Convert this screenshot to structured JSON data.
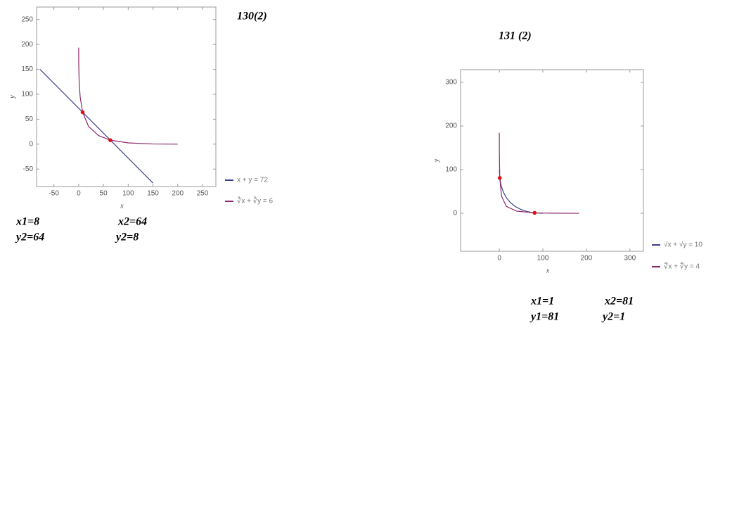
{
  "chart_data": [
    {
      "type": "line",
      "title": "130(2)",
      "xlabel": "x",
      "ylabel": "y",
      "xlim": [
        -85,
        277
      ],
      "ylim": [
        -85,
        275
      ],
      "xticks": [
        -50,
        0,
        50,
        100,
        150,
        200,
        250
      ],
      "yticks": [
        -50,
        0,
        50,
        100,
        150,
        200,
        250
      ],
      "series": [
        {
          "name": "x + y = 72",
          "color": "#3b3f8c",
          "x": [
            -78,
            150
          ],
          "values": [
            150,
            -78
          ]
        },
        {
          "name": "∛x + ∛y = 6",
          "color": "#8b2a6a",
          "x": [
            0.01,
            0.2,
            1,
            3,
            8,
            20,
            40,
            64,
            100,
            150,
            200
          ],
          "values": [
            193.6,
            158.8,
            125,
            94.7,
            64,
            35.5,
            17.2,
            8,
            2.5,
            0.3,
            0
          ]
        }
      ],
      "points": {
        "color": "#e01010",
        "x": [
          8,
          64
        ],
        "values": [
          64,
          8
        ]
      },
      "annotations": [
        "x1=8",
        "x2=64",
        "y2=64",
        "y2=8"
      ]
    },
    {
      "type": "line",
      "title": "131 (2)",
      "xlabel": "x",
      "ylabel": "y",
      "xlim": [
        -89,
        331
      ],
      "ylim": [
        -87,
        329
      ],
      "xticks": [
        0,
        100,
        200,
        300
      ],
      "yticks": [
        0,
        100,
        200,
        300
      ],
      "series": [
        {
          "name": "√x + √y = 10",
          "color": "#3b3f8c",
          "x": [
            0,
            1,
            4,
            9,
            16,
            25,
            36,
            49,
            64,
            81,
            100
          ],
          "values": [
            100,
            81,
            64,
            49,
            36,
            25,
            16,
            9,
            4,
            1,
            0
          ]
        },
        {
          "name": "∜x + ∜y = 4",
          "color": "#8b2a6a",
          "x": [
            0.01,
            0.1,
            1,
            5,
            16,
            40,
            81,
            120,
            183
          ],
          "values": [
            184.2,
            139.7,
            81,
            39.4,
            16,
            4.86,
            1,
            0.23,
            0.01
          ]
        }
      ],
      "points": {
        "color": "#e01010",
        "x": [
          1,
          81
        ],
        "values": [
          81,
          1
        ]
      },
      "annotations": [
        "x1=1",
        "x2=81",
        "y1=81",
        "y2=1"
      ]
    }
  ]
}
